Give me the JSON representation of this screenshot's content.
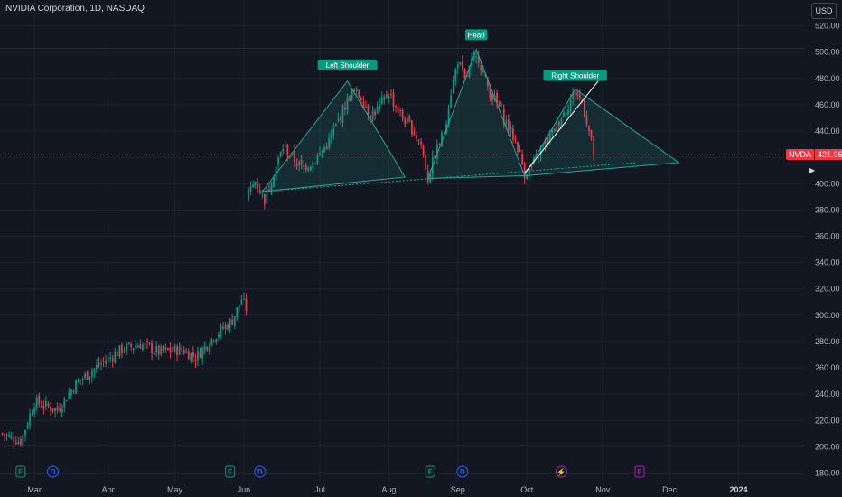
{
  "header": {
    "title": "NVIDIA Corporation, 1D, NASDAQ"
  },
  "currency_button": "USD",
  "price_tag": {
    "symbol": "NVDA",
    "value": "421.96"
  },
  "colors": {
    "up": "#089981",
    "down": "#f23645",
    "background": "#131722",
    "pattern": "#26a69a",
    "grid": "#1e222d",
    "text": "#b2b5be"
  },
  "pattern_labels": [
    "Left Shoulder",
    "Head",
    "Right Shoulder"
  ],
  "events": [
    {
      "letter": "E",
      "kind": "earnings",
      "color": "#089981"
    },
    {
      "letter": "D",
      "kind": "dividend",
      "color": "#2962ff"
    },
    {
      "letter": "E",
      "kind": "earnings",
      "color": "#089981"
    },
    {
      "letter": "D",
      "kind": "dividend",
      "color": "#2962ff"
    },
    {
      "letter": "E",
      "kind": "earnings",
      "color": "#089981"
    },
    {
      "letter": "D",
      "kind": "dividend",
      "color": "#2962ff"
    },
    {
      "letter": "⚡",
      "kind": "split",
      "color": "#9c27b0"
    },
    {
      "letter": "E",
      "kind": "earnings",
      "color": "#9c27b0"
    }
  ],
  "chart_data": {
    "type": "candlestick",
    "title": "NVIDIA Corporation, 1D, NASDAQ",
    "y_ticks": [
      180,
      200,
      220,
      240,
      260,
      280,
      300,
      320,
      340,
      360,
      380,
      400,
      420,
      440,
      460,
      480,
      500,
      520
    ],
    "y_tick_labels": [
      "180.00",
      "200.00",
      "220.00",
      "240.00",
      "260.00",
      "280.00",
      "300.00",
      "320.00",
      "340.00",
      "360.00",
      "380.00",
      "400.00",
      "420.00",
      "440.00",
      "460.00",
      "480.00",
      "500.00",
      "520.00"
    ],
    "ylim": [
      176,
      530
    ],
    "x_labels": [
      "Mar",
      "Apr",
      "May",
      "Jun",
      "Jul",
      "Aug",
      "Sep",
      "Oct",
      "Nov",
      "Dec",
      "2024"
    ],
    "grid": true,
    "anchors": [
      [
        0,
        210
      ],
      [
        8,
        204
      ],
      [
        14,
        234
      ],
      [
        24,
        228
      ],
      [
        32,
        248
      ],
      [
        42,
        262
      ],
      [
        52,
        274
      ],
      [
        60,
        278
      ],
      [
        68,
        272
      ],
      [
        78,
        274
      ],
      [
        84,
        268
      ],
      [
        92,
        284
      ],
      [
        100,
        296
      ],
      [
        104,
        312
      ],
      [
        106,
        305
      ],
      [
        107,
        392
      ],
      [
        110,
        402
      ],
      [
        114,
        388
      ],
      [
        118,
        408
      ],
      [
        122,
        428
      ],
      [
        126,
        420
      ],
      [
        130,
        412
      ],
      [
        136,
        418
      ],
      [
        142,
        432
      ],
      [
        148,
        456
      ],
      [
        152,
        470
      ],
      [
        156,
        466
      ],
      [
        160,
        452
      ],
      [
        164,
        458
      ],
      [
        168,
        470
      ],
      [
        170,
        462
      ],
      [
        174,
        450
      ],
      [
        178,
        442
      ],
      [
        182,
        430
      ],
      [
        185,
        404
      ],
      [
        188,
        422
      ],
      [
        192,
        440
      ],
      [
        195,
        470
      ],
      [
        198,
        494
      ],
      [
        201,
        478
      ],
      [
        204,
        492
      ],
      [
        207,
        496
      ],
      [
        210,
        478
      ],
      [
        213,
        466
      ],
      [
        216,
        458
      ],
      [
        219,
        446
      ],
      [
        222,
        436
      ],
      [
        224,
        428
      ],
      [
        227,
        408
      ],
      [
        230,
        412
      ],
      [
        234,
        426
      ],
      [
        238,
        436
      ],
      [
        242,
        448
      ],
      [
        246,
        460
      ],
      [
        249,
        470
      ],
      [
        252,
        462
      ],
      [
        254,
        448
      ],
      [
        255,
        440
      ],
      [
        257,
        422
      ]
    ],
    "pattern": {
      "neckline": [
        [
          113,
          394
        ],
        [
          276,
          416
        ]
      ],
      "left_triangle": [
        [
          113,
          394
        ],
        [
          150,
          478
        ],
        [
          175,
          405
        ]
      ],
      "head_triangle": [
        [
          185,
          404
        ],
        [
          206,
          502
        ],
        [
          227,
          406
        ]
      ],
      "right_triangle": [
        [
          227,
          406
        ],
        [
          249,
          472
        ],
        [
          294,
          416
        ]
      ],
      "uptrend_line": [
        [
          227,
          408
        ],
        [
          259,
          478
        ]
      ]
    },
    "event_days": [
      8,
      22,
      99,
      112,
      186,
      200,
      243,
      277
    ],
    "month_start_days": [
      14,
      46,
      75,
      105,
      138,
      168,
      198,
      228,
      261,
      290,
      320
    ]
  }
}
